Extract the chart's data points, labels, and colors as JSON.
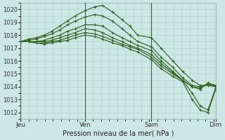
{
  "xlabel": "Pression niveau de la mer( hPa )",
  "ylim": [
    1011.5,
    1020.5
  ],
  "yticks": [
    1012,
    1013,
    1014,
    1015,
    1016,
    1017,
    1018,
    1019,
    1020
  ],
  "day_labels": [
    "Jeu",
    "Ven",
    "Sam",
    "Dim"
  ],
  "day_positions": [
    0,
    0.33,
    0.67,
    1.0
  ],
  "bg_color": "#cde8e4",
  "grid_color": "#b0d0cc",
  "line_color": "#2d5a1b",
  "marker_color": "#2d6b1e",
  "series": [
    {
      "x": [
        0.0,
        0.04,
        0.08,
        0.12,
        0.16,
        0.2,
        0.24,
        0.28,
        0.33,
        0.38,
        0.42,
        0.47,
        0.52,
        0.56,
        0.6,
        0.67,
        0.72,
        0.78,
        0.83,
        0.88,
        0.92,
        0.96,
        1.0
      ],
      "y": [
        1017.5,
        1017.7,
        1017.8,
        1018.0,
        1018.3,
        1018.7,
        1019.1,
        1019.5,
        1019.9,
        1020.2,
        1020.3,
        1019.8,
        1019.2,
        1018.7,
        1018.0,
        1017.8,
        1017.0,
        1016.0,
        1015.2,
        1014.5,
        1014.1,
        1014.1,
        1014.0
      ]
    },
    {
      "x": [
        0.0,
        0.04,
        0.08,
        0.12,
        0.16,
        0.2,
        0.24,
        0.28,
        0.33,
        0.38,
        0.42,
        0.47,
        0.52,
        0.56,
        0.6,
        0.67,
        0.72,
        0.78,
        0.83,
        0.88,
        0.92,
        0.96,
        1.0
      ],
      "y": [
        1017.5,
        1017.6,
        1017.7,
        1017.9,
        1018.1,
        1018.4,
        1018.8,
        1019.1,
        1019.4,
        1019.6,
        1019.5,
        1019.1,
        1018.5,
        1018.0,
        1017.5,
        1017.1,
        1016.3,
        1015.5,
        1014.7,
        1014.1,
        1014.0,
        1014.2,
        1014.1
      ]
    },
    {
      "x": [
        0.0,
        0.04,
        0.08,
        0.12,
        0.16,
        0.2,
        0.24,
        0.28,
        0.33,
        0.38,
        0.42,
        0.47,
        0.52,
        0.56,
        0.6,
        0.67,
        0.72,
        0.78,
        0.83,
        0.88,
        0.92,
        0.96,
        1.0
      ],
      "y": [
        1017.5,
        1017.5,
        1017.5,
        1017.6,
        1017.8,
        1018.0,
        1018.3,
        1018.5,
        1018.8,
        1018.8,
        1018.7,
        1018.2,
        1017.8,
        1017.5,
        1017.2,
        1016.8,
        1016.0,
        1015.2,
        1014.5,
        1014.0,
        1013.9,
        1014.2,
        1014.0
      ]
    },
    {
      "x": [
        0.0,
        0.04,
        0.08,
        0.12,
        0.16,
        0.2,
        0.24,
        0.28,
        0.33,
        0.38,
        0.42,
        0.47,
        0.52,
        0.56,
        0.6,
        0.67,
        0.72,
        0.78,
        0.83,
        0.88,
        0.92,
        0.96,
        1.0
      ],
      "y": [
        1017.5,
        1017.5,
        1017.5,
        1017.5,
        1017.6,
        1017.8,
        1018.0,
        1018.2,
        1018.5,
        1018.4,
        1018.2,
        1017.8,
        1017.5,
        1017.2,
        1017.0,
        1016.5,
        1015.8,
        1015.1,
        1014.5,
        1014.0,
        1013.8,
        1014.3,
        1014.1
      ]
    },
    {
      "x": [
        0.0,
        0.04,
        0.08,
        0.12,
        0.16,
        0.2,
        0.24,
        0.28,
        0.33,
        0.38,
        0.42,
        0.47,
        0.52,
        0.56,
        0.6,
        0.67,
        0.72,
        0.78,
        0.83,
        0.88,
        0.92,
        0.96,
        1.0
      ],
      "y": [
        1017.5,
        1017.5,
        1017.4,
        1017.4,
        1017.5,
        1017.6,
        1017.8,
        1018.0,
        1018.2,
        1018.1,
        1017.9,
        1017.6,
        1017.3,
        1017.1,
        1016.9,
        1016.3,
        1015.6,
        1015.0,
        1014.5,
        1013.5,
        1012.5,
        1012.2,
        1013.9
      ]
    },
    {
      "x": [
        0.0,
        0.04,
        0.08,
        0.12,
        0.16,
        0.2,
        0.24,
        0.28,
        0.33,
        0.38,
        0.42,
        0.47,
        0.52,
        0.56,
        0.6,
        0.67,
        0.72,
        0.78,
        0.83,
        0.88,
        0.92,
        0.96,
        1.0
      ],
      "y": [
        1017.5,
        1017.5,
        1017.4,
        1017.3,
        1017.4,
        1017.5,
        1017.6,
        1017.8,
        1018.0,
        1017.9,
        1017.7,
        1017.4,
        1017.2,
        1016.9,
        1016.7,
        1016.1,
        1015.4,
        1014.8,
        1014.4,
        1013.0,
        1012.2,
        1012.0,
        1013.8
      ]
    }
  ]
}
